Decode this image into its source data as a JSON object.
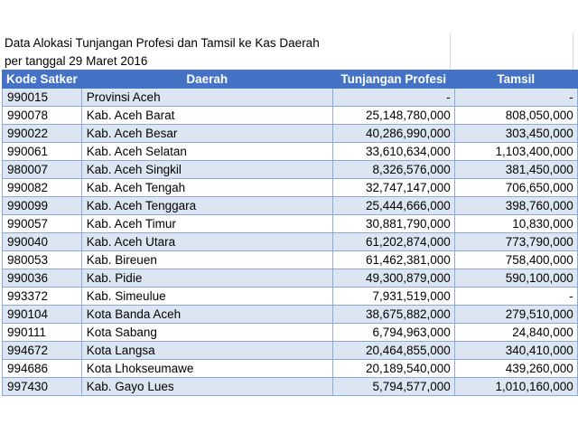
{
  "title_line1": "Data Alokasi Tunjangan Profesi dan Tamsil ke Kas Daerah",
  "title_line2": "per tanggal 29 Maret 2016",
  "headers": {
    "kode": "Kode Satker",
    "daerah": "Daerah",
    "tunjangan": "Tunjangan Profesi",
    "tamsil": "Tamsil"
  },
  "rows": [
    {
      "kode": "990015",
      "daerah": "Provinsi Aceh",
      "tunjangan": "-",
      "tamsil": "-"
    },
    {
      "kode": "990078",
      "daerah": "Kab. Aceh Barat",
      "tunjangan": "25,148,780,000",
      "tamsil": "808,050,000"
    },
    {
      "kode": "990022",
      "daerah": "Kab. Aceh Besar",
      "tunjangan": "40,286,990,000",
      "tamsil": "303,450,000"
    },
    {
      "kode": "990061",
      "daerah": "Kab. Aceh Selatan",
      "tunjangan": "33,610,634,000",
      "tamsil": "1,103,400,000"
    },
    {
      "kode": "980007",
      "daerah": "Kab. Aceh Singkil",
      "tunjangan": "8,326,576,000",
      "tamsil": "381,450,000"
    },
    {
      "kode": "990082",
      "daerah": "Kab. Aceh Tengah",
      "tunjangan": "32,747,147,000",
      "tamsil": "706,650,000"
    },
    {
      "kode": "990099",
      "daerah": "Kab. Aceh Tenggara",
      "tunjangan": "25,444,666,000",
      "tamsil": "398,760,000"
    },
    {
      "kode": "990057",
      "daerah": "Kab. Aceh Timur",
      "tunjangan": "30,881,790,000",
      "tamsil": "10,830,000"
    },
    {
      "kode": "990040",
      "daerah": "Kab. Aceh Utara",
      "tunjangan": "61,202,874,000",
      "tamsil": "773,790,000"
    },
    {
      "kode": "980053",
      "daerah": "Kab. Bireuen",
      "tunjangan": "61,462,381,000",
      "tamsil": "758,400,000"
    },
    {
      "kode": "990036",
      "daerah": "Kab. Pidie",
      "tunjangan": "49,300,879,000",
      "tamsil": "590,100,000"
    },
    {
      "kode": "993372",
      "daerah": "Kab. Simeulue",
      "tunjangan": "7,931,519,000",
      "tamsil": "-"
    },
    {
      "kode": "990104",
      "daerah": "Kota Banda Aceh",
      "tunjangan": "38,675,882,000",
      "tamsil": "279,510,000"
    },
    {
      "kode": "990111",
      "daerah": "Kota Sabang",
      "tunjangan": "6,794,963,000",
      "tamsil": "24,840,000"
    },
    {
      "kode": "994672",
      "daerah": "Kota Langsa",
      "tunjangan": "20,464,855,000",
      "tamsil": "340,410,000"
    },
    {
      "kode": "994686",
      "daerah": "Kota Lhokseumawe",
      "tunjangan": "20,189,540,000",
      "tamsil": "439,260,000"
    },
    {
      "kode": "997430",
      "daerah": "Kab. Gayo Lues",
      "tunjangan": "5,794,577,000",
      "tamsil": "1,010,160,000"
    }
  ]
}
